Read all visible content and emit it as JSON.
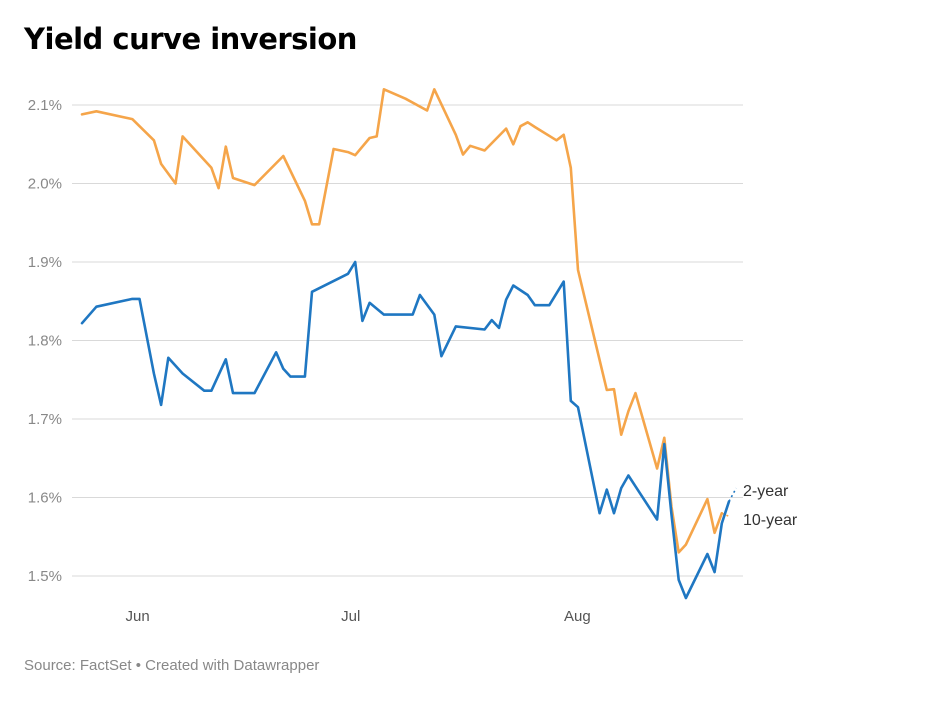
{
  "title": "Yield curve inversion",
  "source": {
    "text": "Source: FactSet",
    "separator": " • ",
    "credit": "Created with Datawrapper"
  },
  "colors": {
    "two_year": "#1f77c2",
    "ten_year": "#f5a54a",
    "grid": "#d9d9d9",
    "tick_text": "#888888",
    "label_text": "#333333"
  },
  "chart_data": {
    "type": "line",
    "title": "Yield curve inversion",
    "xlabel": "",
    "ylabel": "",
    "x_ticks": [
      "Jun",
      "Jul",
      "Aug"
    ],
    "ylim": [
      1.46,
      2.12
    ],
    "y_ticks": [
      1.5,
      1.6,
      1.7,
      1.8,
      1.9,
      2.0,
      2.1
    ],
    "y_tick_labels": [
      "1.5%",
      "1.6%",
      "1.7%",
      "1.8%",
      "1.9%",
      "2.0%",
      "2.1%"
    ],
    "grid": true,
    "legend": "direct labels at line ends (right)",
    "series": [
      {
        "name": "10-year",
        "color": "#f5a54a",
        "points": [
          [
            "2019-05-24",
            2.088
          ],
          [
            "2019-05-26",
            2.092
          ],
          [
            "2019-05-31",
            2.082
          ],
          [
            "2019-06-03",
            2.055
          ],
          [
            "2019-06-04",
            2.025
          ],
          [
            "2019-06-06",
            2.0
          ],
          [
            "2019-06-07",
            2.06
          ],
          [
            "2019-06-11",
            2.02
          ],
          [
            "2019-06-12",
            1.994
          ],
          [
            "2019-06-13",
            2.047
          ],
          [
            "2019-06-14",
            2.007
          ],
          [
            "2019-06-17",
            1.998
          ],
          [
            "2019-06-21",
            2.035
          ],
          [
            "2019-06-24",
            1.978
          ],
          [
            "2019-06-25",
            1.948
          ],
          [
            "2019-06-26",
            1.948
          ],
          [
            "2019-06-28",
            2.044
          ],
          [
            "2019-06-30",
            2.04
          ],
          [
            "2019-07-01",
            2.036
          ],
          [
            "2019-07-03",
            2.058
          ],
          [
            "2019-07-04",
            2.06
          ],
          [
            "2019-07-05",
            2.12
          ],
          [
            "2019-07-08",
            2.108
          ],
          [
            "2019-07-11",
            2.093
          ],
          [
            "2019-07-12",
            2.12
          ],
          [
            "2019-07-15",
            2.062
          ],
          [
            "2019-07-16",
            2.037
          ],
          [
            "2019-07-17",
            2.048
          ],
          [
            "2019-07-19",
            2.042
          ],
          [
            "2019-07-22",
            2.07
          ],
          [
            "2019-07-23",
            2.05
          ],
          [
            "2019-07-24",
            2.073
          ],
          [
            "2019-07-25",
            2.078
          ],
          [
            "2019-07-26",
            2.072
          ],
          [
            "2019-07-29",
            2.055
          ],
          [
            "2019-07-30",
            2.062
          ],
          [
            "2019-07-31",
            2.02
          ],
          [
            "2019-08-01",
            1.89
          ],
          [
            "2019-08-05",
            1.737
          ],
          [
            "2019-08-06",
            1.738
          ],
          [
            "2019-08-07",
            1.68
          ],
          [
            "2019-08-08",
            1.71
          ],
          [
            "2019-08-09",
            1.733
          ],
          [
            "2019-08-12",
            1.637
          ],
          [
            "2019-08-13",
            1.676
          ],
          [
            "2019-08-14",
            1.588
          ],
          [
            "2019-08-15",
            1.53
          ],
          [
            "2019-08-16",
            1.54
          ],
          [
            "2019-08-19",
            1.598
          ],
          [
            "2019-08-20",
            1.555
          ],
          [
            "2019-08-21",
            1.58
          ]
        ],
        "projection": [
          [
            "2019-08-21",
            1.58
          ],
          [
            "2019-08-22",
            1.576
          ]
        ]
      },
      {
        "name": "2-year",
        "color": "#1f77c2",
        "points": [
          [
            "2019-05-24",
            1.822
          ],
          [
            "2019-05-26",
            1.843
          ],
          [
            "2019-05-31",
            1.853
          ],
          [
            "2019-06-01",
            1.853
          ],
          [
            "2019-06-03",
            1.758
          ],
          [
            "2019-06-04",
            1.718
          ],
          [
            "2019-06-05",
            1.778
          ],
          [
            "2019-06-07",
            1.758
          ],
          [
            "2019-06-10",
            1.736
          ],
          [
            "2019-06-11",
            1.736
          ],
          [
            "2019-06-13",
            1.776
          ],
          [
            "2019-06-14",
            1.733
          ],
          [
            "2019-06-17",
            1.733
          ],
          [
            "2019-06-20",
            1.785
          ],
          [
            "2019-06-21",
            1.764
          ],
          [
            "2019-06-22",
            1.754
          ],
          [
            "2019-06-24",
            1.754
          ],
          [
            "2019-06-25",
            1.862
          ],
          [
            "2019-06-30",
            1.885
          ],
          [
            "2019-07-01",
            1.9
          ],
          [
            "2019-07-02",
            1.825
          ],
          [
            "2019-07-03",
            1.848
          ],
          [
            "2019-07-05",
            1.833
          ],
          [
            "2019-07-09",
            1.833
          ],
          [
            "2019-07-10",
            1.858
          ],
          [
            "2019-07-12",
            1.833
          ],
          [
            "2019-07-13",
            1.78
          ],
          [
            "2019-07-15",
            1.818
          ],
          [
            "2019-07-19",
            1.814
          ],
          [
            "2019-07-20",
            1.826
          ],
          [
            "2019-07-21",
            1.816
          ],
          [
            "2019-07-22",
            1.852
          ],
          [
            "2019-07-23",
            1.87
          ],
          [
            "2019-07-25",
            1.858
          ],
          [
            "2019-07-26",
            1.845
          ],
          [
            "2019-07-28",
            1.845
          ],
          [
            "2019-07-30",
            1.875
          ],
          [
            "2019-07-31",
            1.723
          ],
          [
            "2019-08-01",
            1.715
          ],
          [
            "2019-08-04",
            1.58
          ],
          [
            "2019-08-05",
            1.61
          ],
          [
            "2019-08-06",
            1.58
          ],
          [
            "2019-08-07",
            1.612
          ],
          [
            "2019-08-08",
            1.628
          ],
          [
            "2019-08-12",
            1.572
          ],
          [
            "2019-08-13",
            1.668
          ],
          [
            "2019-08-14",
            1.578
          ],
          [
            "2019-08-15",
            1.495
          ],
          [
            "2019-08-16",
            1.472
          ],
          [
            "2019-08-19",
            1.528
          ],
          [
            "2019-08-20",
            1.505
          ],
          [
            "2019-08-21",
            1.567
          ],
          [
            "2019-08-22",
            1.595
          ]
        ],
        "projection": [
          [
            "2019-08-22",
            1.595
          ],
          [
            "2019-08-23",
            1.612
          ]
        ]
      }
    ]
  }
}
